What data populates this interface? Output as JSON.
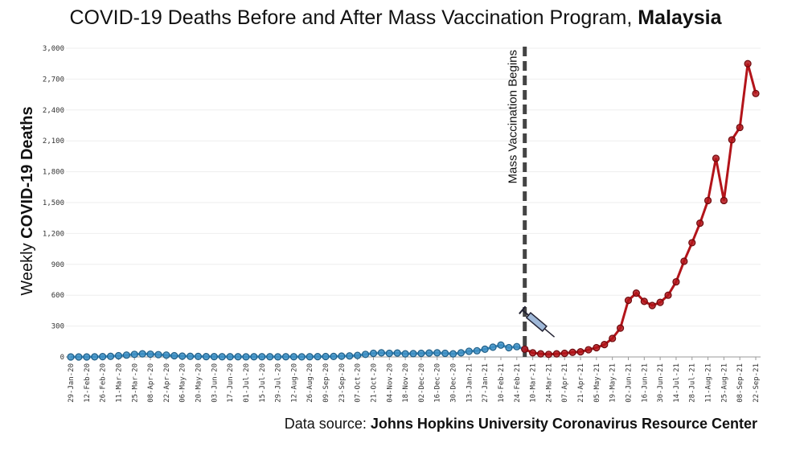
{
  "chart_data": {
    "type": "line",
    "title": "COVID-19 Deaths Before and After Mass Vaccination Program,",
    "title_bold": "Malaysia",
    "y_label": "Weekly",
    "y_label_bold": "COVID-19 Deaths",
    "source": "Data source:",
    "source_bold": "Johns Hopkins University Coronavirus Resource Center",
    "annotation": "Mass Vaccination Begins",
    "categories": [
      "29-Jan-20",
      null,
      "12-Feb-20",
      null,
      "26-Feb-20",
      null,
      "11-Mar-20",
      null,
      "25-Mar-20",
      null,
      "08-Apr-20",
      null,
      "22-Apr-20",
      null,
      "06-May-20",
      null,
      "20-May-20",
      null,
      "03-Jun-20",
      null,
      "17-Jun-20",
      null,
      "01-Jul-20",
      null,
      "15-Jul-20",
      null,
      "29-Jul-20",
      null,
      "12-Aug-20",
      null,
      "26-Aug-20",
      null,
      "09-Sep-20",
      null,
      "23-Sep-20",
      null,
      "07-Oct-20",
      null,
      "21-Oct-20",
      null,
      "04-Nov-20",
      null,
      "18-Nov-20",
      null,
      "02-Dec-20",
      null,
      "16-Dec-20",
      null,
      "30-Dec-20",
      null,
      "13-Jan-21",
      null,
      "27-Jan-21",
      null,
      "10-Feb-21",
      null,
      "24-Feb-21",
      null,
      "10-Mar-21",
      null,
      "24-Mar-21",
      null,
      "07-Apr-21",
      null,
      "21-Apr-21",
      null,
      "05-May-21",
      null,
      "19-May-21",
      null,
      "02-Jun-21",
      null,
      "16-Jun-21",
      null,
      "30-Jun-21",
      null,
      "14-Jul-21",
      null,
      "28-Jul-21",
      null,
      "11-Aug-21",
      null,
      "25-Aug-21",
      null,
      "08-Sep-21",
      null,
      "22-Sep-21"
    ],
    "series": [
      {
        "color": "#3d8fc4",
        "values": [
          0,
          0,
          0,
          1,
          3,
          6,
          12,
          18,
          25,
          30,
          27,
          22,
          18,
          12,
          8,
          6,
          5,
          3,
          3,
          2,
          2,
          2,
          1,
          2,
          2,
          2,
          1,
          2,
          2,
          1,
          2,
          3,
          4,
          5,
          8,
          10,
          15,
          25,
          35,
          40,
          35,
          38,
          30,
          32,
          35,
          38,
          40,
          35,
          30,
          40,
          55,
          60,
          75,
          95,
          115,
          90,
          100,
          75,
          null,
          null,
          null,
          null,
          null,
          null,
          null,
          null,
          null,
          null,
          null,
          null,
          null,
          null,
          null,
          null,
          null,
          null,
          null,
          null,
          null,
          null,
          null,
          null,
          null,
          null,
          null,
          null,
          null
        ]
      },
      {
        "color": "#b3141a",
        "values": [
          null,
          null,
          null,
          null,
          null,
          null,
          null,
          null,
          null,
          null,
          null,
          null,
          null,
          null,
          null,
          null,
          null,
          null,
          null,
          null,
          null,
          null,
          null,
          null,
          null,
          null,
          null,
          null,
          null,
          null,
          null,
          null,
          null,
          null,
          null,
          null,
          null,
          null,
          null,
          null,
          null,
          null,
          null,
          null,
          null,
          null,
          null,
          null,
          null,
          null,
          null,
          null,
          null,
          null,
          null,
          null,
          null,
          75,
          40,
          30,
          25,
          30,
          35,
          45,
          50,
          70,
          90,
          120,
          180,
          280,
          550,
          620,
          540,
          500,
          530,
          600,
          730,
          930,
          1110,
          1300,
          1520,
          1930,
          1520,
          2110,
          2230,
          2850,
          2560
        ]
      }
    ],
    "ylim": [
      0,
      3000
    ],
    "yticks": [
      0,
      {
        "value": 300,
        "label": "300"
      },
      {
        "value": 600,
        "label": "600"
      },
      {
        "value": 900,
        "label": "900"
      },
      {
        "value": 1200,
        "label": "1,200"
      },
      {
        "value": 1500,
        "label": "1,500"
      },
      {
        "value": 1800,
        "label": "1,800"
      },
      {
        "value": 2100,
        "label": "2,100"
      },
      {
        "value": 2400,
        "label": "2,400"
      },
      {
        "value": 2700,
        "label": "2,700"
      },
      {
        "value": 3000,
        "label": "3,000"
      }
    ],
    "grid": true
  }
}
